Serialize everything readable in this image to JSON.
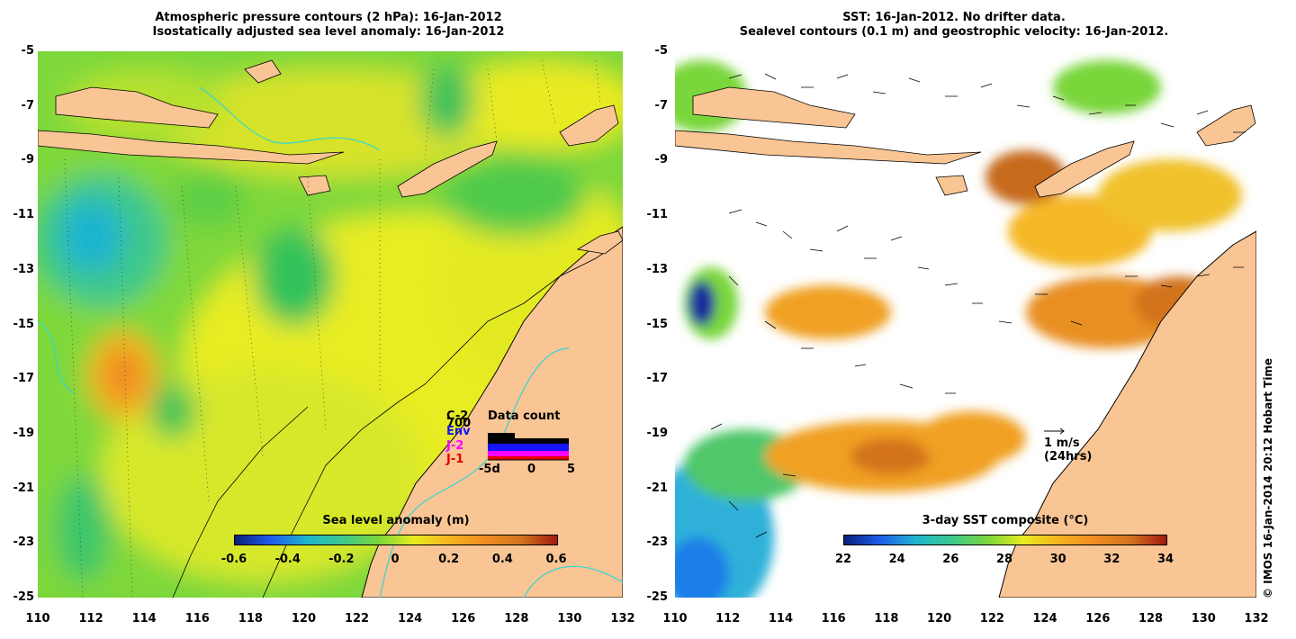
{
  "left_panel": {
    "title_line1": "Atmospheric pressure contours (2 hPa): 16-Jan-2012",
    "title_line2": "Isostatically adjusted sea level anomaly: 16-Jan-2012",
    "colorbar": {
      "label": "Sea level anomaly (m)",
      "ticks": [
        "-0.6",
        "-0.4",
        "-0.2",
        "0",
        "0.2",
        "0.4",
        "0.6"
      ]
    },
    "data_count": {
      "title": "Data count",
      "satellites": [
        {
          "label": "C-2",
          "color": "#000000"
        },
        {
          "label": "700",
          "color": "#000000"
        },
        {
          "label": "Env",
          "color": "#1414ff"
        },
        {
          "label": "J-2",
          "color": "#ff00ff"
        },
        {
          "label": "J-1",
          "color": "#e60000"
        }
      ],
      "x_ticks": [
        "-5d",
        "0",
        "5"
      ]
    }
  },
  "right_panel": {
    "title_line1": "SST: 16-Jan-2012. No drifter data.",
    "title_line2": "Sealevel contours (0.1 m) and geostrophic velocity: 16-Jan-2012.",
    "colorbar": {
      "label": "3-day SST composite (°C)",
      "ticks": [
        "22",
        "24",
        "26",
        "28",
        "30",
        "32",
        "34"
      ]
    },
    "velocity_scale": {
      "line1": "1 m/s",
      "line2": "(24hrs)"
    }
  },
  "axes": {
    "lat_ticks": [
      "-5",
      "-7",
      "-9",
      "-11",
      "-13",
      "-15",
      "-17",
      "-19",
      "-21",
      "-23",
      "-25"
    ],
    "lon_ticks": [
      "110",
      "112",
      "114",
      "116",
      "118",
      "120",
      "122",
      "124",
      "126",
      "128",
      "130",
      "132"
    ]
  },
  "copyright": "© IMOS 16-Jan-2014 20:12 Hobart Time",
  "colors": {
    "land": "#f9c594",
    "ocean_base": "#79d63b",
    "coast_line": "#000000",
    "bathy_line": "#33d6d6"
  }
}
